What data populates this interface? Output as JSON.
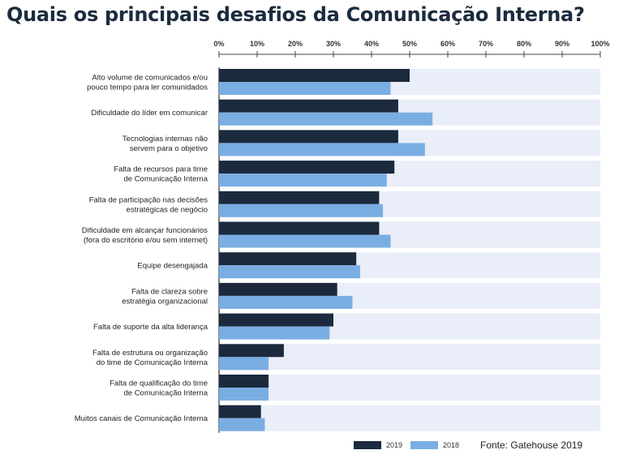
{
  "title": "Quais os principais desafios da Comunicação Interna?",
  "colors": {
    "y2019": "#1b2a3d",
    "y2018": "#7aaee3",
    "band": "#eaeef9"
  },
  "source": "Fonte: Gatehouse 2019",
  "chart_data": {
    "type": "bar",
    "orientation": "horizontal",
    "title": "Quais os principais desafios da Comunicação Interna?",
    "xlim": [
      0,
      100
    ],
    "tick_labels": [
      "0%",
      "10%",
      "20%",
      "30%",
      "40%",
      "50%",
      "60%",
      "70%",
      "80%",
      "90%",
      "100%"
    ],
    "legend_position": "bottom",
    "categories": [
      [
        "Alto volume de comunicados e/ou",
        "pouco tempo para ler comunidados"
      ],
      [
        "Dificuldade do líder em comunicar"
      ],
      [
        "Tecnologias internas não",
        "servem para o objetivo"
      ],
      [
        "Falta de recursos para time",
        "de Comunicação Interna"
      ],
      [
        "Falta de participação nas decisões",
        "estratégicas de negócio"
      ],
      [
        "Dificuldade em alcançar funcionários",
        "(fora do escritório e/ou sem internet)"
      ],
      [
        "Equipe desengajada"
      ],
      [
        "Falta de clareza sobre",
        "estratégia organizacional"
      ],
      [
        "Falta de suporte da alta liderança"
      ],
      [
        "Falta de estrutura ou organização",
        "do time de Comunicação Interna"
      ],
      [
        "Falta de qualificação do time",
        "de Comunicação Interna"
      ],
      [
        "Muitos canais de Comunicação Interna"
      ]
    ],
    "series": [
      {
        "name": "2019",
        "values": [
          50,
          47,
          47,
          46,
          42,
          42,
          36,
          31,
          30,
          17,
          13,
          11
        ]
      },
      {
        "name": "2018",
        "values": [
          45,
          56,
          54,
          44,
          43,
          45,
          37,
          35,
          29,
          13,
          13,
          12
        ]
      }
    ]
  }
}
